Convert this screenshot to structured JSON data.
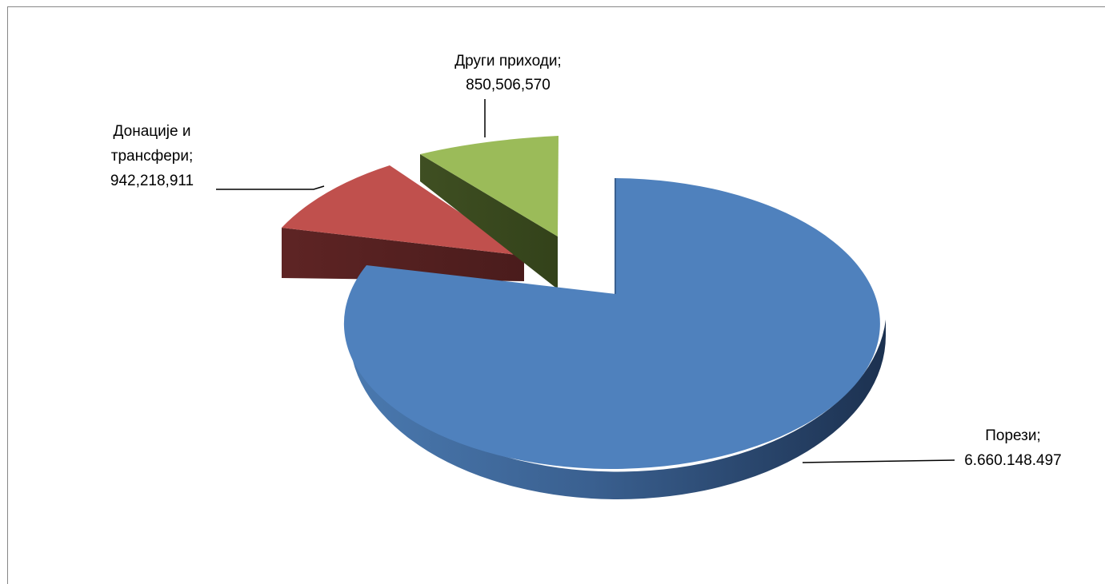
{
  "chart_data": {
    "type": "pie",
    "title": "",
    "style": "3d-exploded",
    "slices": [
      {
        "name": "Порези",
        "label_value": "6.660.148.497",
        "value": 6660148497,
        "color": "#4F81BD",
        "exploded": false
      },
      {
        "name": "Донације и трансфери",
        "label_name_lines": [
          "Донације и",
          "трансфери;"
        ],
        "label_value": "942,218,911",
        "value": 942218911,
        "color": "#C0504D",
        "exploded": true
      },
      {
        "name": "Други приходи",
        "label_name_lines": [
          "Други приходи;"
        ],
        "label_value": "850,506,570",
        "value": 850506570,
        "color": "#9BBB59",
        "exploded": true
      }
    ]
  },
  "labels": {
    "porezi_name": "Порези;",
    "porezi_value": "6.660.148.497",
    "donacije_line1": "Донације и",
    "donacije_line2": "трансфери;",
    "donacije_value": "942,218,911",
    "drugi_name": "Други приходи;",
    "drugi_value": "850,506,570"
  }
}
